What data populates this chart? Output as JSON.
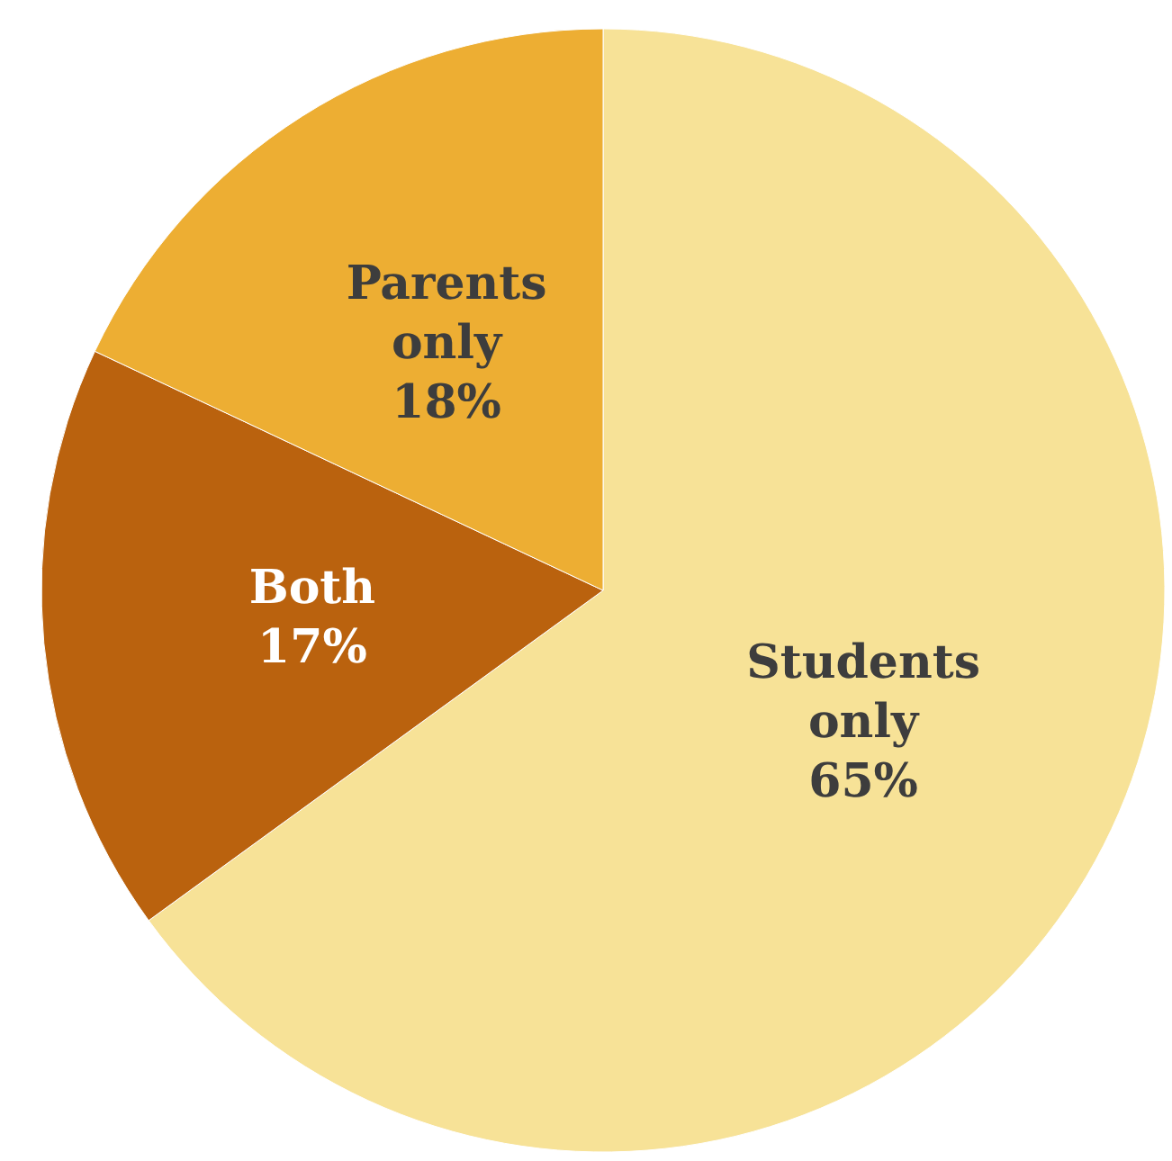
{
  "chart_data": {
    "type": "pie",
    "categories": [
      "Students only",
      "Both",
      "Parents only"
    ],
    "values": [
      65,
      17,
      18
    ],
    "colors": [
      "#f7e297",
      "#ba620e",
      "#edae33"
    ],
    "value_labels": [
      "65%",
      "17%",
      "18%"
    ]
  }
}
